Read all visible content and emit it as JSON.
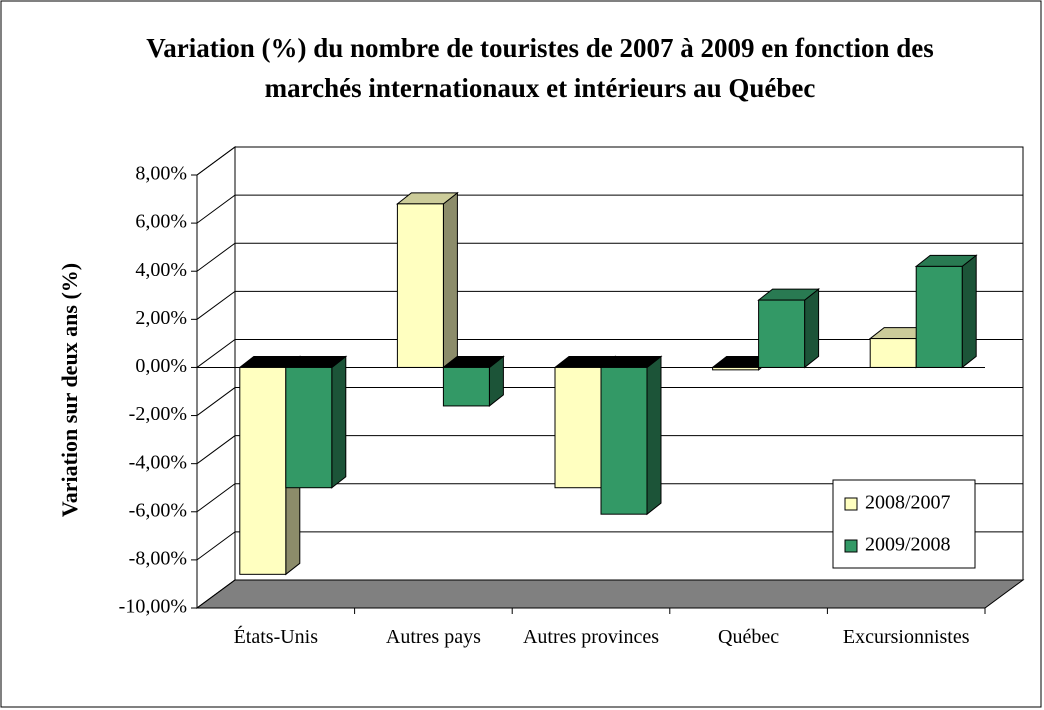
{
  "chart_data": {
    "type": "bar3d",
    "title": "Variation (%) du nombre de touristes de 2007 à 2009 en fonction des marchés internationaux et intérieurs au Québec",
    "y_axis_label": "Variation sur deux ans (%)",
    "categories": [
      "États-Unis",
      "Autres pays",
      "Autres provinces",
      "Québec",
      "Excursionnistes"
    ],
    "series": [
      {
        "name": "2008/2007",
        "color": "#ffffc0",
        "values": [
          -8.6,
          6.8,
          -5.0,
          -0.1,
          1.2
        ]
      },
      {
        "name": "2009/2008",
        "color": "#339966",
        "values": [
          -5.0,
          -1.6,
          -6.1,
          2.8,
          4.2
        ]
      }
    ],
    "ylim": [
      -10,
      8
    ],
    "yticks": [
      {
        "value": -10,
        "label": "-10,00%"
      },
      {
        "value": -8,
        "label": "-8,00%"
      },
      {
        "value": -6,
        "label": "-6,00%"
      },
      {
        "value": -4,
        "label": "-4,00%"
      },
      {
        "value": -2,
        "label": "-2,00%"
      },
      {
        "value": 0,
        "label": "0,00%"
      },
      {
        "value": 2,
        "label": "2,00%"
      },
      {
        "value": 4,
        "label": "4,00%"
      },
      {
        "value": 6,
        "label": "6,00%"
      },
      {
        "value": 8,
        "label": "8,00%"
      }
    ],
    "grid": true,
    "legend": "bottom-right"
  }
}
